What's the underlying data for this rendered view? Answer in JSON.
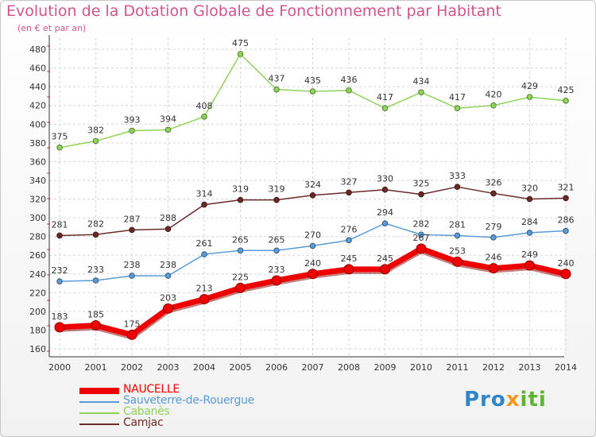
{
  "header": {
    "title": "Evolution de la Dotation Globale de Fonctionnement par Habitant",
    "subtitle": "(en € et par an)"
  },
  "logo": {
    "part1": "Pro",
    "part2": "x",
    "part3": "iti"
  },
  "chart_data": {
    "type": "line",
    "x": [
      "2000",
      "2001",
      "2002",
      "2003",
      "2004",
      "2005",
      "2006",
      "2007",
      "2008",
      "2009",
      "2010",
      "2011",
      "2012",
      "2013",
      "2014"
    ],
    "ylim": [
      160,
      480
    ],
    "yticks": [
      160,
      180,
      200,
      220,
      240,
      260,
      280,
      300,
      320,
      340,
      360,
      380,
      400,
      420,
      440,
      460,
      480
    ],
    "grid": true,
    "legend_position": "bottom-left",
    "series": [
      {
        "name": "NAUCELLE",
        "color": "#ee0000",
        "values": [
          183,
          185,
          175,
          203,
          213,
          225,
          233,
          240,
          245,
          245,
          267,
          253,
          246,
          249,
          240
        ]
      },
      {
        "name": "Sauveterre-de-Rouergue",
        "color": "#5b9bd5",
        "values": [
          232,
          233,
          238,
          238,
          261,
          265,
          265,
          270,
          276,
          294,
          282,
          281,
          279,
          284,
          286
        ]
      },
      {
        "name": "Cabanès",
        "color": "#8fd35a",
        "values": [
          375,
          382,
          393,
          394,
          408,
          475,
          437,
          435,
          436,
          417,
          434,
          417,
          420,
          429,
          425
        ]
      },
      {
        "name": "Camjac",
        "color": "#6b2a2a",
        "values": [
          281,
          282,
          287,
          288,
          314,
          319,
          319,
          324,
          327,
          330,
          325,
          333,
          326,
          320,
          321
        ]
      }
    ]
  }
}
